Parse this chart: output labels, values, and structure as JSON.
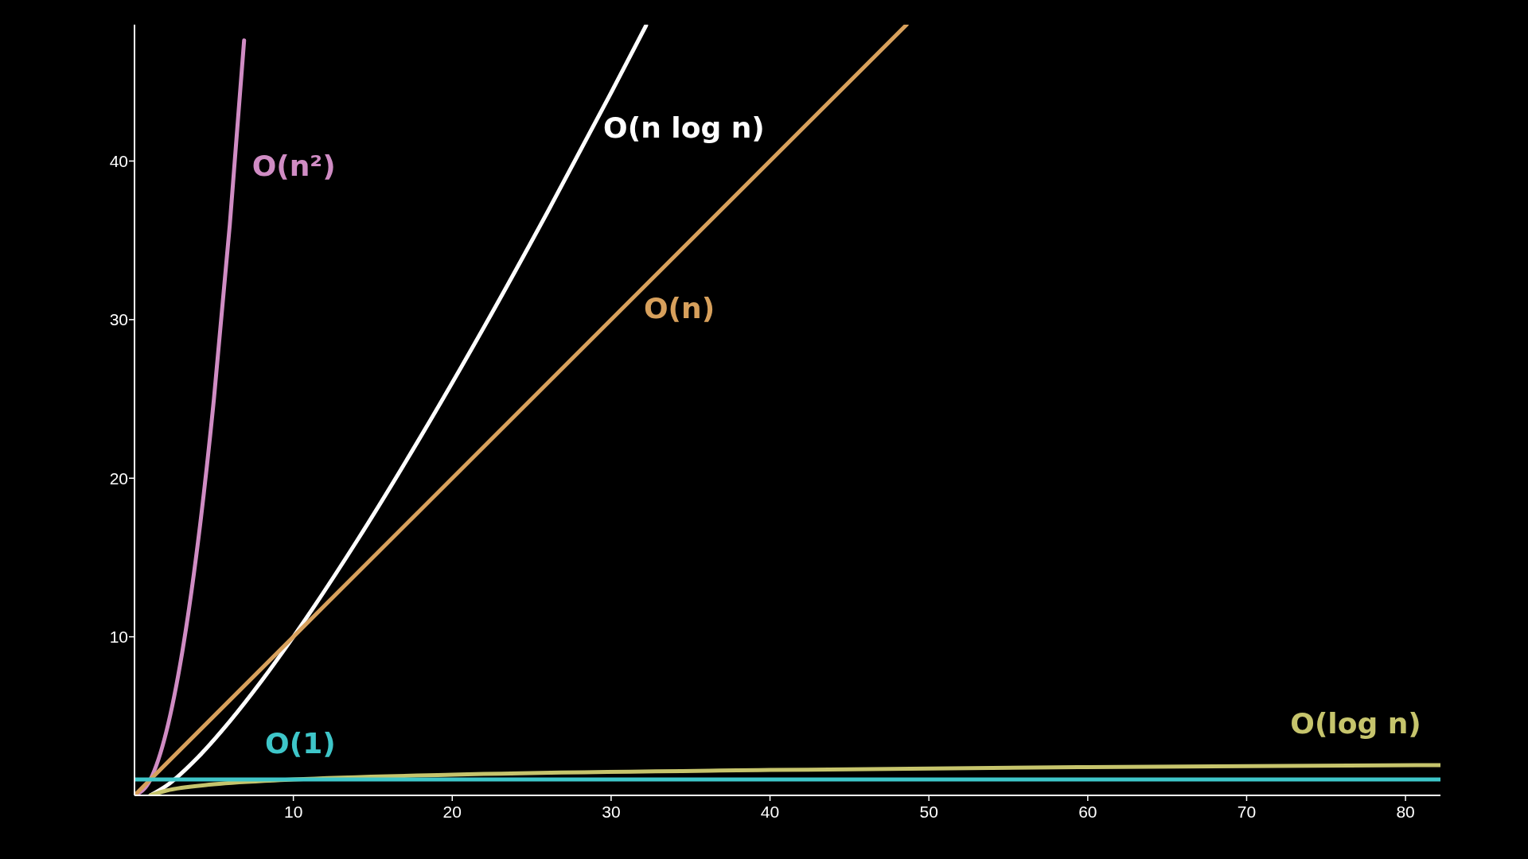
{
  "chart_data": {
    "type": "line",
    "xlim": [
      0,
      82.2
    ],
    "ylim": [
      0,
      48.6
    ],
    "xticks": [
      10,
      20,
      30,
      40,
      50,
      60,
      70,
      80
    ],
    "yticks": [
      10,
      20,
      30,
      40
    ],
    "grid": false,
    "marker": "none",
    "line_style": "solid",
    "series": [
      {
        "name": "O(n²)",
        "color": "#d08cc4",
        "x": [
          0,
          1,
          2,
          3,
          4,
          5,
          6,
          6.9
        ],
        "values": [
          0,
          1,
          4,
          9,
          16,
          25,
          36,
          47.61
        ]
      },
      {
        "name": "O(n log n)",
        "color": "#ffffff",
        "x": [
          1,
          2,
          4,
          6,
          8,
          10,
          14,
          18,
          22,
          26,
          30,
          32.2
        ],
        "values": [
          0,
          0.6,
          2.41,
          4.67,
          7.22,
          10,
          16.05,
          22.6,
          29.53,
          36.79,
          44.31,
          48.55
        ]
      },
      {
        "name": "O(n)",
        "color": "#d7a05c",
        "x": [
          0,
          48.6
        ],
        "values": [
          0,
          48.6
        ]
      },
      {
        "name": "O(log n)",
        "color": "#c6c46c",
        "x": [
          1,
          2,
          5,
          10,
          20,
          40,
          60,
          82.2
        ],
        "values": [
          0,
          0.3,
          0.7,
          1,
          1.3,
          1.6,
          1.78,
          1.91
        ]
      },
      {
        "name": "O(1)",
        "color": "#3ec6c9",
        "x": [
          0,
          82.2
        ],
        "values": [
          1,
          1
        ]
      }
    ]
  }
}
